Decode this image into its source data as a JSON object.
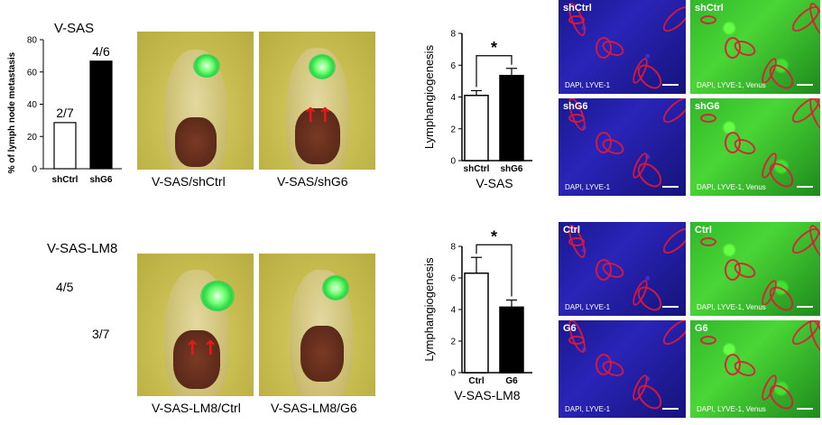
{
  "panelA": {
    "title": "V-SAS",
    "ylabel": "% of lymph node metastasis",
    "yticks": [
      "80",
      "60",
      "40",
      "20",
      "0"
    ],
    "bar_labels": [
      "2/7",
      "4/6"
    ],
    "categories": [
      "shCtrl",
      "shG6"
    ],
    "photo_captions": [
      "V-SAS/shCtrl",
      "V-SAS/shG6"
    ]
  },
  "panelB": {
    "title": "V-SAS-LM8",
    "ratios": [
      "4/5",
      "3/7"
    ],
    "photo_captions": [
      "V-SAS-LM8/Ctrl",
      "V-SAS-LM8/G6"
    ]
  },
  "chart_data": [
    {
      "type": "bar",
      "categories": [
        "shCtrl",
        "shG6"
      ],
      "values": [
        28.6,
        66.7
      ],
      "title": "V-SAS",
      "xlabel": "",
      "ylabel": "% of lymph node metastasis",
      "ylim": [
        0,
        80
      ],
      "yticks": [
        0,
        20,
        40,
        60,
        80
      ],
      "fills": [
        "#ffffff",
        "#000000"
      ],
      "bar_labels": [
        "2/7",
        "4/6"
      ]
    },
    {
      "type": "bar",
      "categories": [
        "shCtrl",
        "shG6"
      ],
      "values": [
        4.1,
        5.35
      ],
      "errors": [
        0.3,
        0.45
      ],
      "xlabel": "V-SAS",
      "ylabel": "Lymphangiogenesis",
      "ylim": [
        0,
        8
      ],
      "yticks": [
        0,
        2,
        4,
        6,
        8
      ],
      "fills": [
        "#ffffff",
        "#000000"
      ],
      "significance": "*"
    },
    {
      "type": "bar",
      "categories": [
        "Ctrl",
        "G6"
      ],
      "values": [
        6.3,
        4.15
      ],
      "errors": [
        1.0,
        0.45
      ],
      "xlabel": "V-SAS-LM8",
      "ylabel": "Lymphangiogenesis",
      "ylim": [
        0,
        8
      ],
      "yticks": [
        0,
        2,
        4,
        6,
        8
      ],
      "fills": [
        "#ffffff",
        "#000000"
      ],
      "significance": "*"
    }
  ],
  "micro": {
    "top": [
      {
        "tag": "shCtrl",
        "caption": "DAPI, LYVE-1"
      },
      {
        "tag": "shCtrl",
        "caption": "DAPI, LYVE-1, Venus"
      },
      {
        "tag": "shG6",
        "caption": "DAPI, LYVE-1"
      },
      {
        "tag": "shG6",
        "caption": "DAPI, LYVE-1, Venus"
      }
    ],
    "bottom": [
      {
        "tag": "Ctrl",
        "caption": "DAPI, LYVE-1"
      },
      {
        "tag": "Ctrl",
        "caption": "DAPI, LYVE-1, Venus"
      },
      {
        "tag": "G6",
        "caption": "DAPI, LYVE-1"
      },
      {
        "tag": "G6",
        "caption": "DAPI, LYVE-1, Venus"
      }
    ]
  }
}
